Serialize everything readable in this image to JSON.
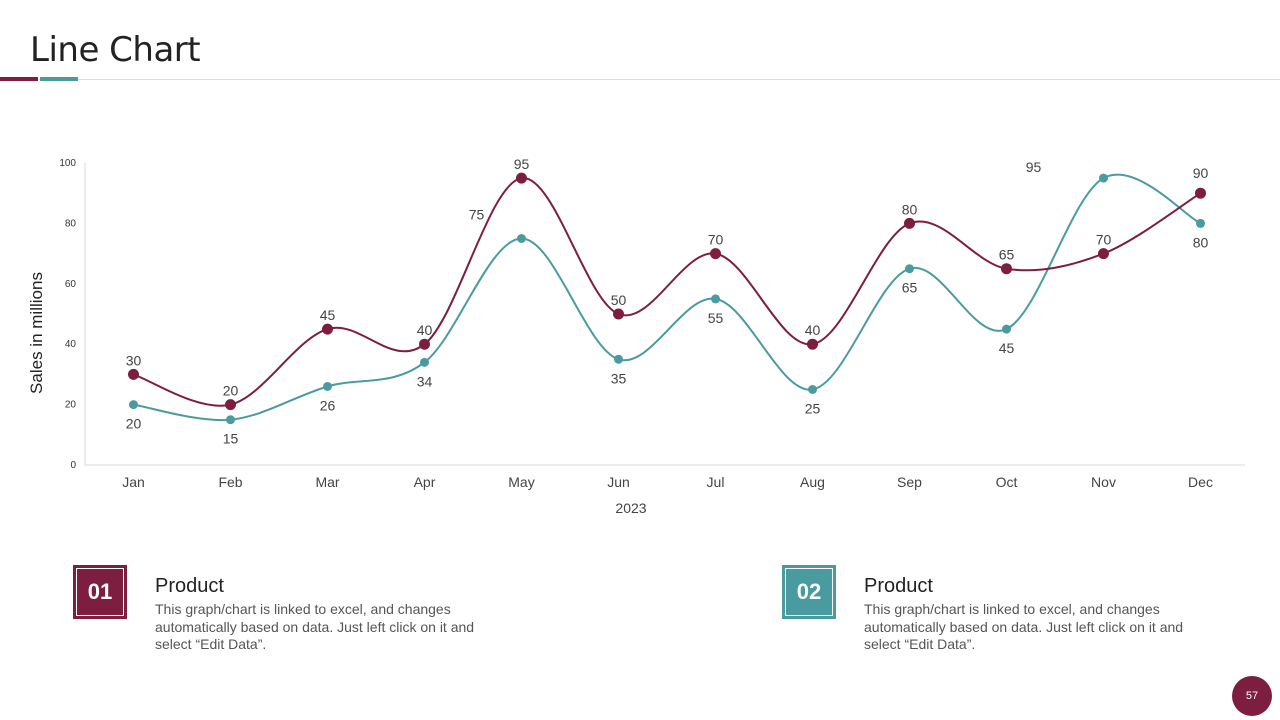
{
  "slide": {
    "title": "Line Chart",
    "page_number": "57"
  },
  "colors": {
    "accent_primary": "#7d1d3f",
    "accent_secondary": "#4a9ba0",
    "rule": "#dddddd"
  },
  "cards": [
    {
      "number": "01",
      "heading": "Product",
      "text": "This graph/chart is linked to excel, and changes automatically based on data. Just left click on it and select “Edit Data”.",
      "color": "#7d1d3f"
    },
    {
      "number": "02",
      "heading": "Product",
      "text": "This graph/chart is linked to excel, and changes automatically based on data. Just left click on it and select “Edit Data”.",
      "color": "#4a9ba0"
    }
  ],
  "chart_data": {
    "type": "line",
    "title": "",
    "xlabel": "2023",
    "ylabel": "Sales in millions",
    "ylim": [
      0,
      100
    ],
    "yticks": [
      0,
      20,
      40,
      60,
      80,
      100
    ],
    "grid": false,
    "smooth": true,
    "categories": [
      "Jan",
      "Feb",
      "Mar",
      "Apr",
      "May",
      "Jun",
      "Jul",
      "Aug",
      "Sep",
      "Oct",
      "Nov",
      "Dec"
    ],
    "series": [
      {
        "name": "Product 01",
        "color": "#7d1d3f",
        "label_position": "above",
        "values": [
          30,
          20,
          45,
          40,
          95,
          50,
          70,
          40,
          80,
          65,
          70,
          90
        ],
        "labels": [
          "30",
          "20",
          "45",
          "40",
          "95",
          "50",
          "70",
          "40",
          "80",
          "65",
          "70",
          "90"
        ]
      },
      {
        "name": "Product 02",
        "color": "#4a9ba0",
        "label_position": "below",
        "values": [
          20,
          15,
          26,
          34,
          75,
          35,
          55,
          25,
          65,
          45,
          95,
          80
        ],
        "labels": [
          "20",
          "15",
          "26",
          "34",
          "75",
          "35",
          "55",
          "25",
          "65",
          "45",
          "95",
          "80"
        ]
      }
    ]
  }
}
